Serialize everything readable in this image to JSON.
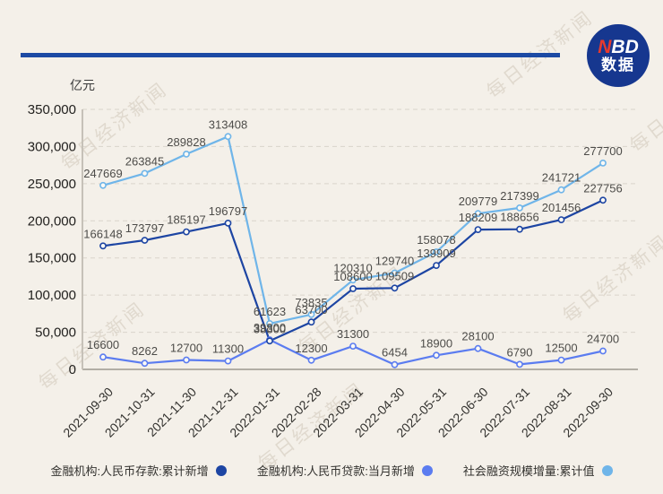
{
  "header": {
    "divider_color": "#1c4aa4",
    "logo": {
      "text_red": "N",
      "text_white": "BD",
      "subtext": "数据",
      "bg_color": "#16378f",
      "red_color": "#e63a2e"
    }
  },
  "watermark": {
    "text": "每日经济新闻"
  },
  "chart_data": {
    "type": "line",
    "unit_label": "亿元",
    "categories": [
      "2021-09-30",
      "2021-10-31",
      "2021-11-30",
      "2021-12-31",
      "2022-01-31",
      "2022-02-28",
      "2022-03-31",
      "2022-04-30",
      "2022-05-31",
      "2022-06-30",
      "2022-07-31",
      "2022-08-31",
      "2022-09-30"
    ],
    "series": [
      {
        "name": "金融机构:人民币存款:累计新增",
        "color": "#1d45a3",
        "values": [
          166148,
          173797,
          185197,
          196797,
          38300,
          63700,
          108600,
          109509,
          139909,
          188209,
          188656,
          201456,
          227756
        ]
      },
      {
        "name": "金融机构:人民币贷款:当月新增",
        "color": "#5b7cf0",
        "values": [
          16600,
          8262,
          12700,
          11300,
          39800,
          12300,
          31300,
          6454,
          18900,
          28100,
          6790,
          12500,
          24700
        ]
      },
      {
        "name": "社会融资规模增量:累计值",
        "color": "#6fb5e9",
        "values": [
          247669,
          263845,
          289828,
          313408,
          61623,
          73835,
          120310,
          129740,
          158078,
          209779,
          217399,
          241721,
          277700
        ]
      }
    ],
    "ylim": [
      0,
      350000
    ],
    "y_tick_step": 50000,
    "y_tick_labels": [
      "0",
      "50,000",
      "100,000",
      "150,000",
      "200,000",
      "250,000",
      "300,000",
      "350,000"
    ],
    "grid": "horizontal-dashed",
    "legend_position": "bottom",
    "x_label_rotation": -45
  }
}
